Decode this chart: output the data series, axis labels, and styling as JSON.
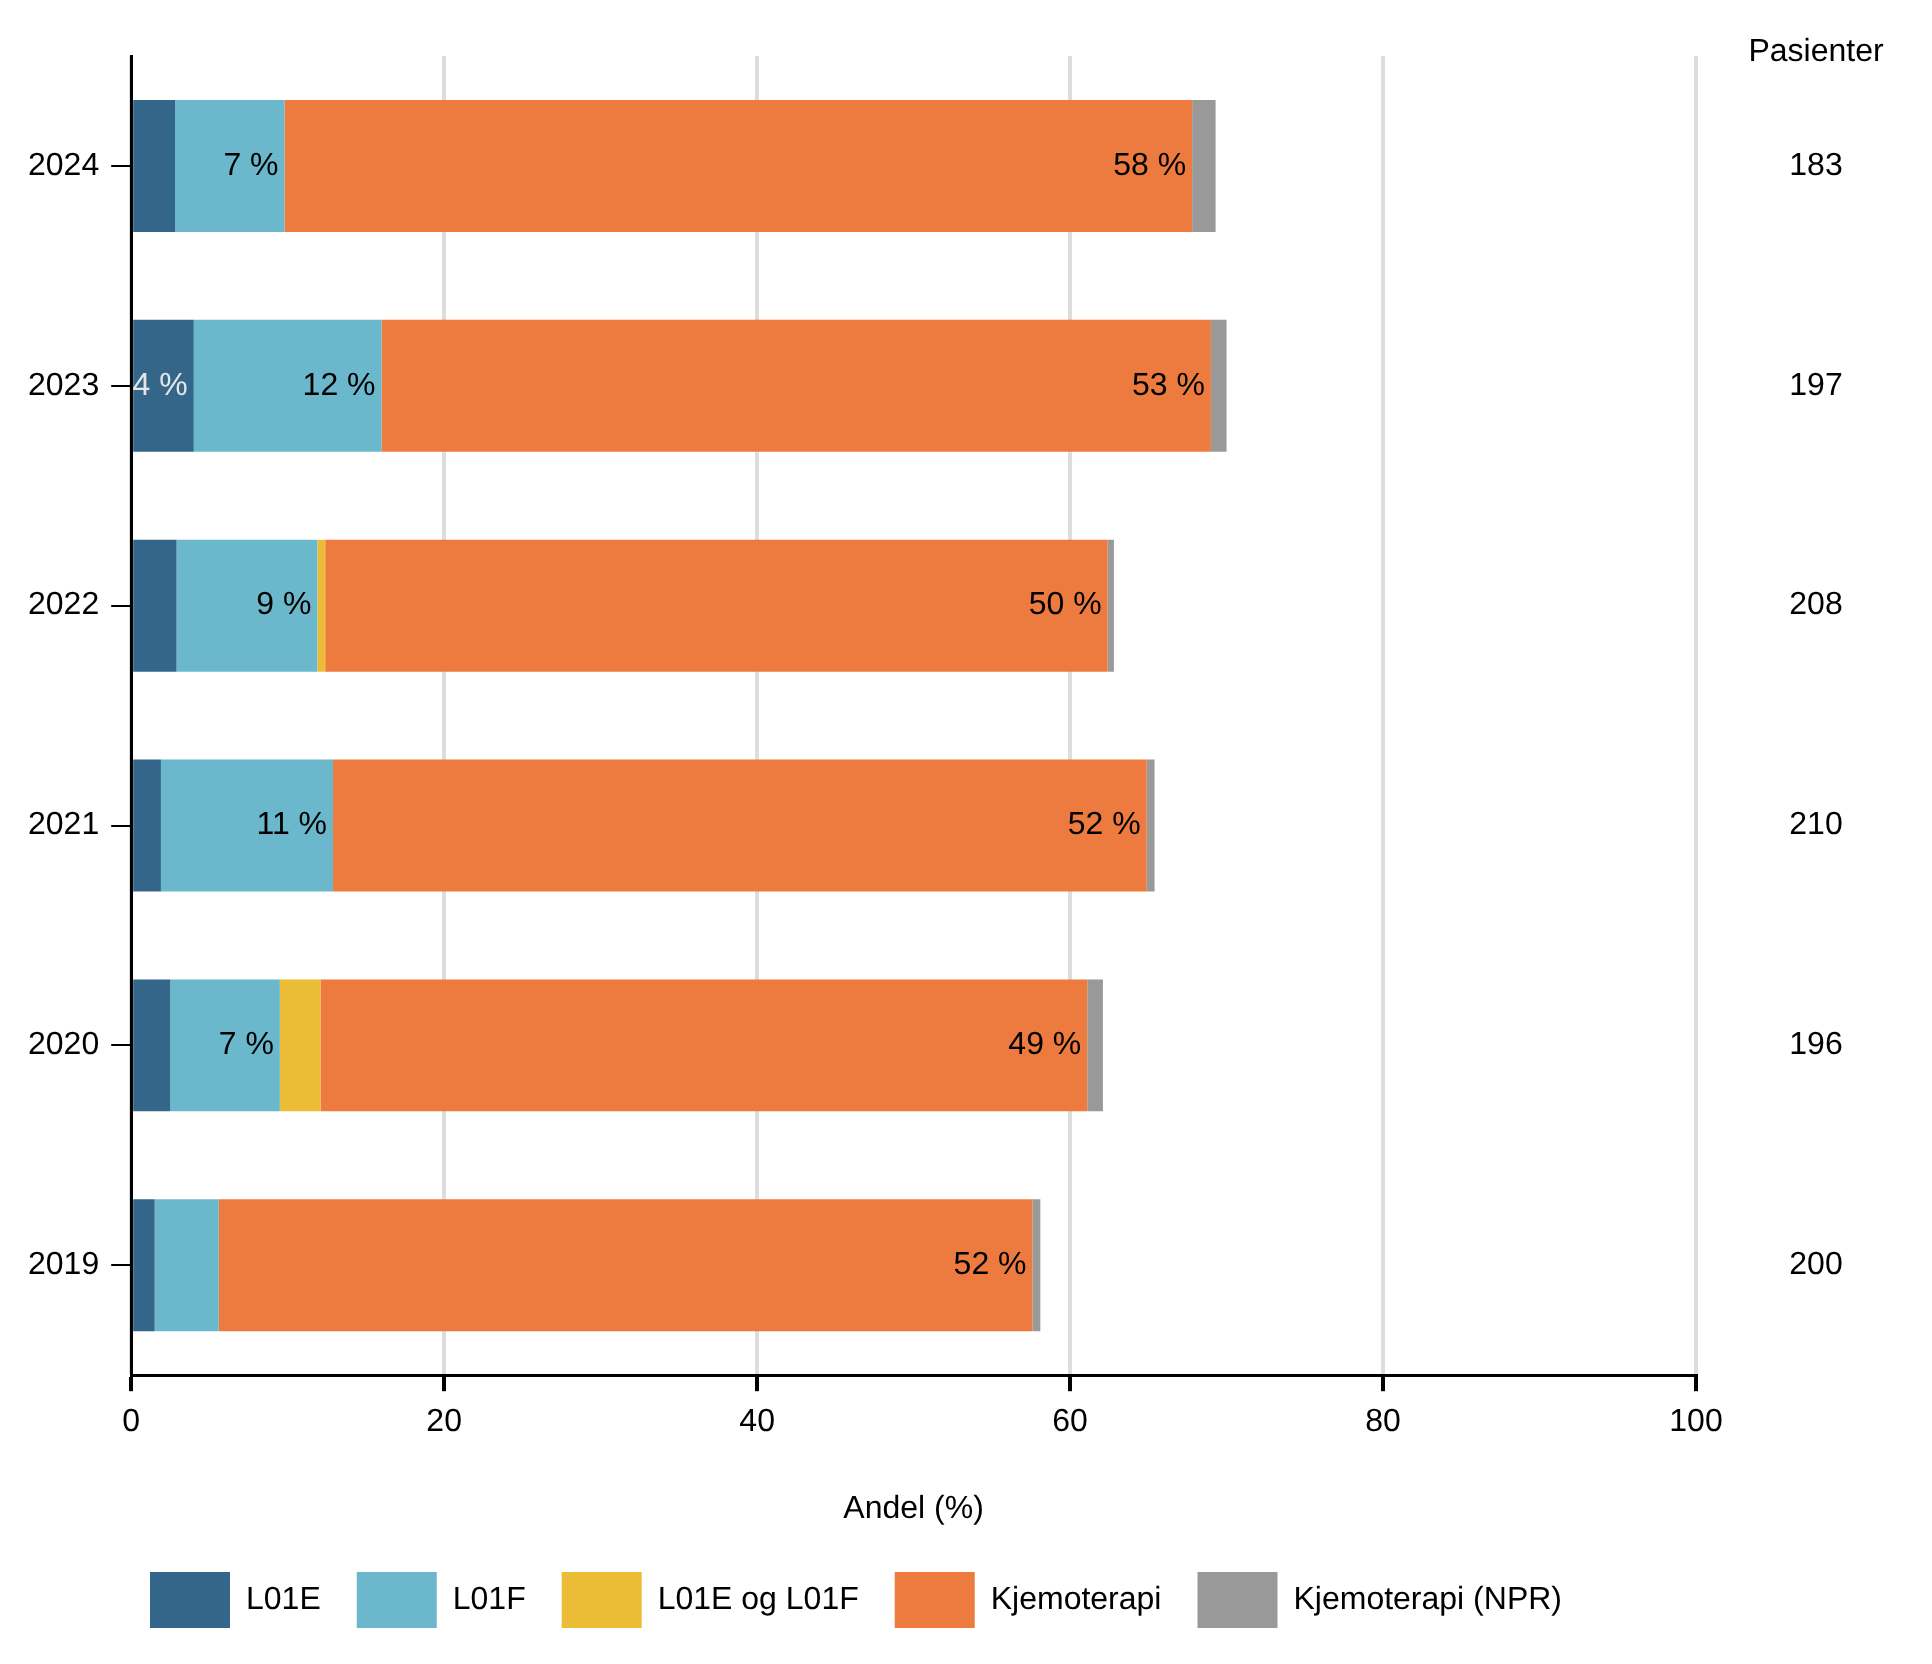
{
  "chart_data": {
    "type": "bar",
    "orientation": "horizontal",
    "stacked": true,
    "xlabel": "Andel (%)",
    "categories": [
      "2024",
      "2023",
      "2022",
      "2021",
      "2020",
      "2019"
    ],
    "series": [
      {
        "name": "L01E",
        "color": "#336688",
        "values": [
          2.8,
          4,
          2.9,
          1.9,
          2.5,
          1.5
        ],
        "value_labels": [
          null,
          "4 %",
          null,
          null,
          null,
          null
        ]
      },
      {
        "name": "L01F",
        "color": "#6bb8cc",
        "values": [
          7,
          12,
          9,
          11,
          7,
          4.1
        ],
        "value_labels": [
          "7 %",
          "12 %",
          "9 %",
          "11 %",
          "7 %",
          null
        ]
      },
      {
        "name": "L01E og L01F",
        "color": "#ebbc35",
        "values": [
          0,
          0,
          0.5,
          0,
          2.6,
          0
        ]
      },
      {
        "name": "Kjemoterapi",
        "color": "#ed7a3e",
        "values": [
          58,
          53,
          50,
          52,
          49,
          52
        ],
        "value_labels": [
          "58 %",
          "53 %",
          "50 %",
          "52 %",
          "49 %",
          "52 %"
        ]
      },
      {
        "name": "Kjemoterapi (NPR)",
        "color": "#999999",
        "values": [
          1.5,
          1,
          0.4,
          0.5,
          1,
          0.5
        ]
      }
    ],
    "xlim": [
      0,
      100
    ],
    "xticks": [
      0,
      20,
      40,
      60,
      80,
      100
    ],
    "grid": "x",
    "legend": "bottom",
    "annotations": [
      "Pasienter",
      "183",
      "197",
      "208",
      "210",
      "196",
      "200"
    ]
  }
}
